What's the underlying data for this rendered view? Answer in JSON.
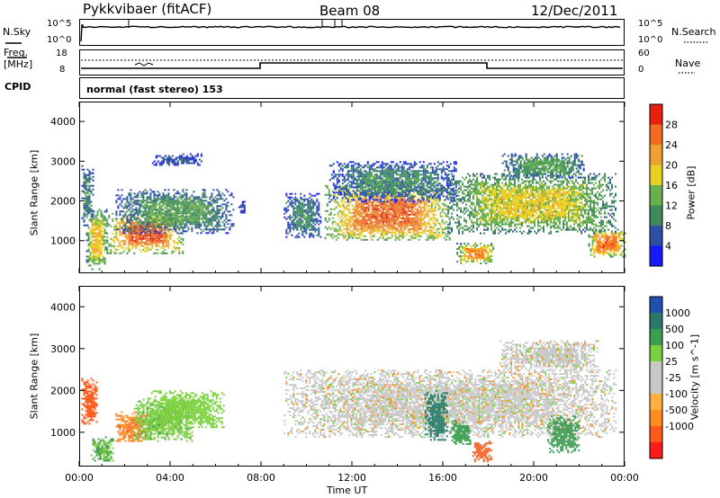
{
  "header": {
    "station": "Pykkvibaer (fitACF)",
    "beam": "Beam 08",
    "date": "12/Dec/2011"
  },
  "top_panels": {
    "nsky_label": "N.Sky",
    "nsky_tick_top": "10^5",
    "nsky_tick_bottom": "10^0",
    "nsearch_label": "N.Search",
    "nsearch_tick_top": "10^5",
    "nsearch_tick_bottom": "10^0",
    "freq_label_1": "Freq.",
    "freq_label_2": "[MHz]",
    "freq_tick_top": "18",
    "freq_tick_bottom": "8",
    "nave_label": "Nave",
    "nave_tick_top": "60",
    "nave_tick_bottom": "0",
    "cpid_label": "CPID",
    "cpid_text": "normal (fast stereo) 153"
  },
  "colors": {
    "power_scale": [
      "#1a1aff",
      "#2c4fa5",
      "#3e8a5d",
      "#6ab04c",
      "#e8d020",
      "#f0a030",
      "#f06a20",
      "#e82010"
    ],
    "velocity_scale": [
      "#ff1a1a",
      "#ff5a1a",
      "#ff8c20",
      "#ffb040",
      "#c8c8c8",
      "#c8c8c8",
      "#7cd040",
      "#3c9c50",
      "#2a7a6a",
      "#2050b0"
    ],
    "ground_scatter": "#c8c8c8"
  },
  "chart_data": [
    {
      "type": "heatmap",
      "title": "",
      "xlabel": "Time UT",
      "ylabel": "Slant Range [km]",
      "colorbar_label": "Power [dB]",
      "colorbar_ticks": [
        "4",
        "8",
        "12",
        "16",
        "20",
        "24",
        "28"
      ],
      "x_ticks": [
        "00:00",
        "04:00",
        "08:00",
        "12:00",
        "16:00",
        "20:00",
        "00:00"
      ],
      "y_ticks": [
        "1000",
        "2000",
        "3000",
        "4000"
      ],
      "xlim_hours": [
        0,
        24
      ],
      "ylim_km": [
        180,
        4500
      ],
      "regions": [
        {
          "t0": 0.1,
          "t1": 0.6,
          "r0": 1400,
          "r1": 2900,
          "value": 10
        },
        {
          "t0": 0.3,
          "t1": 1.2,
          "r0": 300,
          "r1": 1800,
          "value": 20
        },
        {
          "t0": 1.2,
          "t1": 4.6,
          "r0": 700,
          "r1": 1700,
          "value": 27
        },
        {
          "t0": 1.6,
          "t1": 6.8,
          "r0": 1200,
          "r1": 2300,
          "value": 12
        },
        {
          "t0": 3.2,
          "t1": 5.4,
          "r0": 2900,
          "r1": 3200,
          "value": 6
        },
        {
          "t0": 7.0,
          "t1": 7.3,
          "r0": 1700,
          "r1": 2000,
          "value": 6
        },
        {
          "t0": 9.0,
          "t1": 10.6,
          "r0": 1100,
          "r1": 2200,
          "value": 10
        },
        {
          "t0": 10.8,
          "t1": 16.3,
          "r0": 1000,
          "r1": 2400,
          "value": 26
        },
        {
          "t0": 11.0,
          "t1": 16.6,
          "r0": 2000,
          "r1": 3000,
          "value": 10
        },
        {
          "t0": 16.2,
          "t1": 23.6,
          "r0": 1200,
          "r1": 2700,
          "value": 18
        },
        {
          "t0": 16.6,
          "t1": 18.2,
          "r0": 450,
          "r1": 950,
          "value": 24
        },
        {
          "t0": 18.6,
          "t1": 22.2,
          "r0": 2600,
          "r1": 3200,
          "value": 12
        },
        {
          "t0": 22.4,
          "t1": 24.0,
          "r0": 600,
          "r1": 1300,
          "value": 26
        }
      ]
    },
    {
      "type": "heatmap",
      "title": "",
      "xlabel": "Time UT",
      "ylabel": "Slant Range [km]",
      "colorbar_label": "Velocity [m s^-1]",
      "colorbar_ticks": [
        "1000",
        "500",
        "100",
        "25",
        "-25",
        "-100",
        "-500",
        "-1000"
      ],
      "x_ticks": [
        "00:00",
        "04:00",
        "08:00",
        "12:00",
        "16:00",
        "20:00",
        "00:00"
      ],
      "y_ticks": [
        "1000",
        "2000",
        "3000",
        "4000"
      ],
      "xlim_hours": [
        0,
        24
      ],
      "ylim_km": [
        180,
        4500
      ],
      "regions": [
        {
          "t0": 0.1,
          "t1": 0.8,
          "r0": 1200,
          "r1": 2300,
          "value": -200
        },
        {
          "t0": 0.5,
          "t1": 1.5,
          "r0": 300,
          "r1": 900,
          "value": 100
        },
        {
          "t0": 1.6,
          "t1": 3.0,
          "r0": 800,
          "r1": 1500,
          "value": -80
        },
        {
          "t0": 2.4,
          "t1": 5.0,
          "r0": 800,
          "r1": 1800,
          "value": 80
        },
        {
          "t0": 3.0,
          "t1": 6.4,
          "r0": 1100,
          "r1": 2000,
          "value": 60
        },
        {
          "t0": 9.0,
          "t1": 23.6,
          "r0": 900,
          "r1": 2500,
          "value": 0
        },
        {
          "t0": 15.2,
          "t1": 16.2,
          "r0": 800,
          "r1": 2000,
          "value": 600
        },
        {
          "t0": 16.3,
          "t1": 17.2,
          "r0": 700,
          "r1": 1300,
          "value": 150
        },
        {
          "t0": 17.3,
          "t1": 18.1,
          "r0": 300,
          "r1": 800,
          "value": -250
        },
        {
          "t0": 18.5,
          "t1": 22.8,
          "r0": 2500,
          "r1": 3200,
          "value": 0
        },
        {
          "t0": 20.6,
          "t1": 22.0,
          "r0": 500,
          "r1": 1400,
          "value": 300
        }
      ]
    }
  ]
}
